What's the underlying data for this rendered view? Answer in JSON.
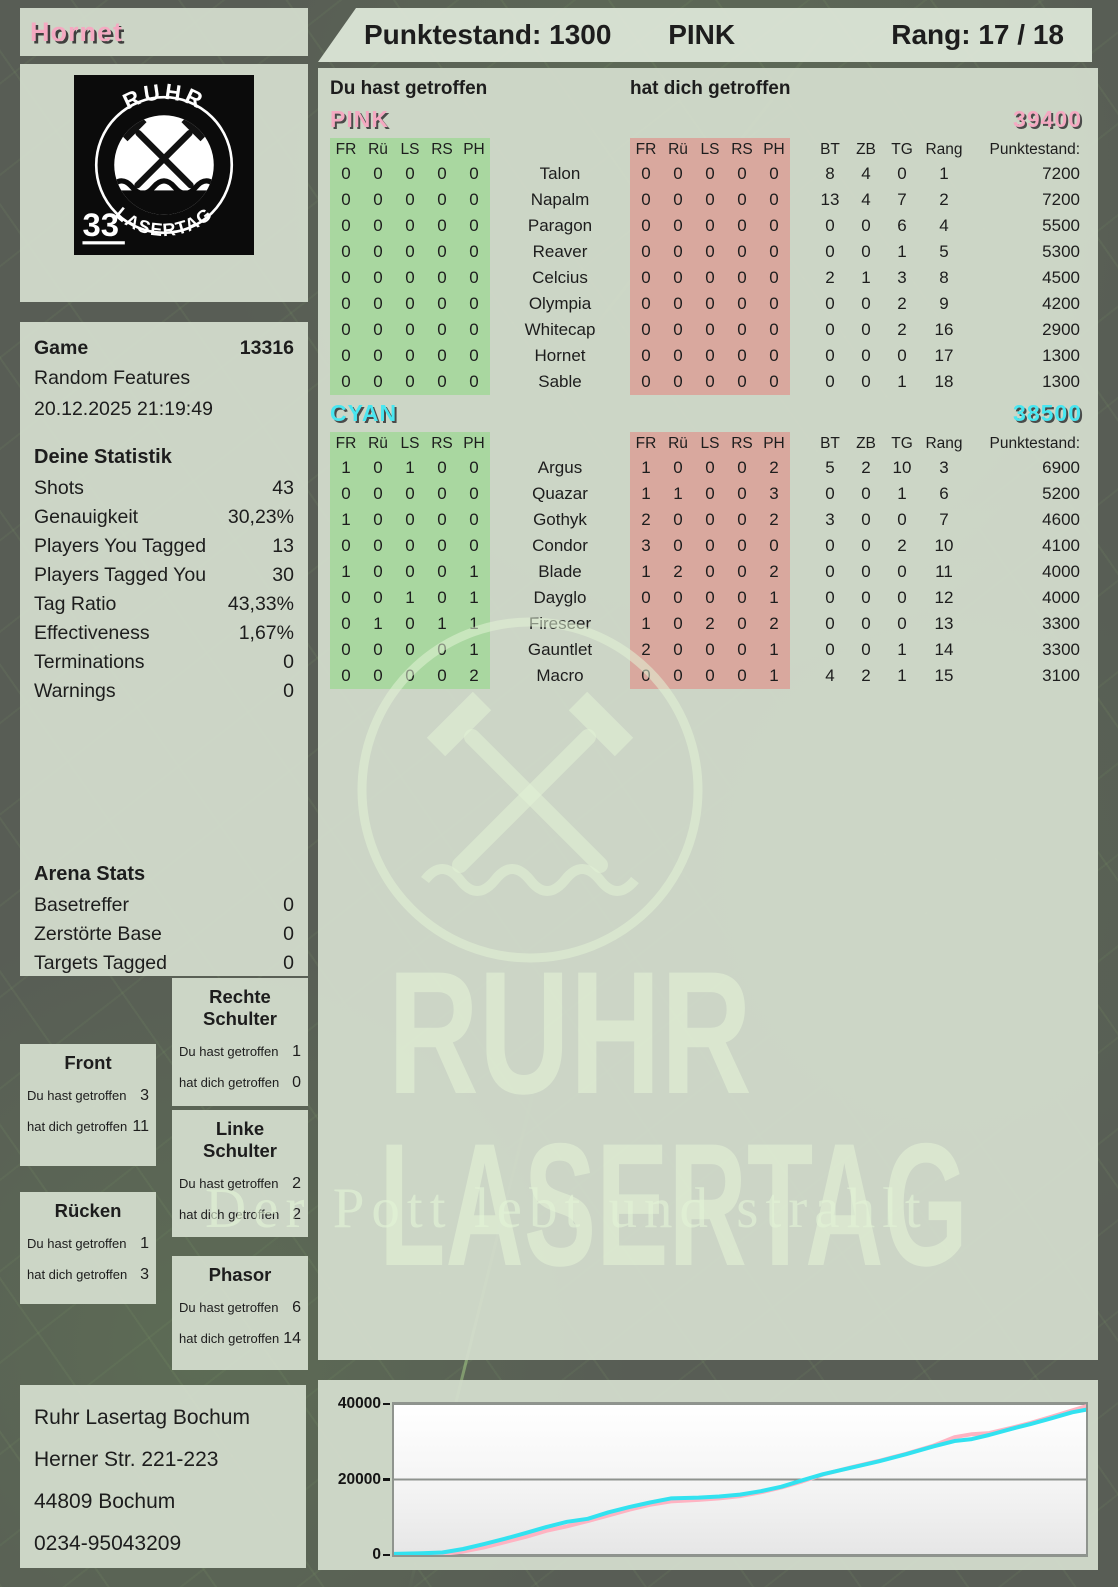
{
  "header": {
    "player": "Hornet",
    "punktestand_label": "Punktestand:",
    "punktestand": "1300",
    "team": "PINK",
    "rang_label": "Rang:",
    "rang": "17 / 18"
  },
  "logo": {
    "arc_top": "RUHR",
    "arc_bottom": "LASERTAG",
    "number": "33"
  },
  "game": {
    "label": "Game",
    "id": "13316",
    "mode": "Random Features",
    "datetime": "20.12.2025 21:19:49"
  },
  "your_stats": {
    "title": "Deine Statistik",
    "rows": [
      {
        "label": "Shots",
        "value": "43"
      },
      {
        "label": "Genauigkeit",
        "value": "30,23%"
      },
      {
        "label": "Players You Tagged",
        "value": "13"
      },
      {
        "label": "Players Tagged You",
        "value": "30"
      },
      {
        "label": "Tag Ratio",
        "value": "43,33%"
      },
      {
        "label": "Effectiveness",
        "value": "1,67%"
      },
      {
        "label": "Terminations",
        "value": "0"
      },
      {
        "label": "Warnings",
        "value": "0"
      }
    ]
  },
  "arena_stats": {
    "title": "Arena Stats",
    "rows": [
      {
        "label": "Basetreffer",
        "value": "0"
      },
      {
        "label": "Zerstörte Base",
        "value": "0"
      },
      {
        "label": "Targets Tagged",
        "value": "0"
      }
    ]
  },
  "hit_headers": {
    "you": "Du hast getroffen",
    "them": "hat dich getroffen"
  },
  "columns": {
    "hit": [
      "FR",
      "Rü",
      "LS",
      "RS",
      "PH"
    ],
    "stats": [
      "BT",
      "ZB",
      "TG",
      "Rang"
    ],
    "punkte_header": "Punktestand:"
  },
  "colors": {
    "pink": "#f4a9c1",
    "cyan": "#49e6f0",
    "hit_you_bg": "#a9d7a0",
    "hit_them_bg": "#d9a89e",
    "chart_pink": "#ffb3c2",
    "chart_cyan": "#32e2f0"
  },
  "teams": [
    {
      "name": "PINK",
      "color": "#f4a9c1",
      "total": "39400",
      "rows": [
        {
          "you": [
            0,
            0,
            0,
            0,
            0
          ],
          "player": "Talon",
          "them": [
            0,
            0,
            0,
            0,
            0
          ],
          "bt": 8,
          "zb": 4,
          "tg": 0,
          "rang": 1,
          "punkte": "7200"
        },
        {
          "you": [
            0,
            0,
            0,
            0,
            0
          ],
          "player": "Napalm",
          "them": [
            0,
            0,
            0,
            0,
            0
          ],
          "bt": 13,
          "zb": 4,
          "tg": 7,
          "rang": 2,
          "punkte": "7200"
        },
        {
          "you": [
            0,
            0,
            0,
            0,
            0
          ],
          "player": "Paragon",
          "them": [
            0,
            0,
            0,
            0,
            0
          ],
          "bt": 0,
          "zb": 0,
          "tg": 6,
          "rang": 4,
          "punkte": "5500"
        },
        {
          "you": [
            0,
            0,
            0,
            0,
            0
          ],
          "player": "Reaver",
          "them": [
            0,
            0,
            0,
            0,
            0
          ],
          "bt": 0,
          "zb": 0,
          "tg": 1,
          "rang": 5,
          "punkte": "5300"
        },
        {
          "you": [
            0,
            0,
            0,
            0,
            0
          ],
          "player": "Celcius",
          "them": [
            0,
            0,
            0,
            0,
            0
          ],
          "bt": 2,
          "zb": 1,
          "tg": 3,
          "rang": 8,
          "punkte": "4500"
        },
        {
          "you": [
            0,
            0,
            0,
            0,
            0
          ],
          "player": "Olympia",
          "them": [
            0,
            0,
            0,
            0,
            0
          ],
          "bt": 0,
          "zb": 0,
          "tg": 2,
          "rang": 9,
          "punkte": "4200"
        },
        {
          "you": [
            0,
            0,
            0,
            0,
            0
          ],
          "player": "Whitecap",
          "them": [
            0,
            0,
            0,
            0,
            0
          ],
          "bt": 0,
          "zb": 0,
          "tg": 2,
          "rang": 16,
          "punkte": "2900"
        },
        {
          "you": [
            0,
            0,
            0,
            0,
            0
          ],
          "player": "Hornet",
          "them": [
            0,
            0,
            0,
            0,
            0
          ],
          "bt": 0,
          "zb": 0,
          "tg": 0,
          "rang": 17,
          "punkte": "1300"
        },
        {
          "you": [
            0,
            0,
            0,
            0,
            0
          ],
          "player": "Sable",
          "them": [
            0,
            0,
            0,
            0,
            0
          ],
          "bt": 0,
          "zb": 0,
          "tg": 1,
          "rang": 18,
          "punkte": "1300"
        }
      ]
    },
    {
      "name": "CYAN",
      "color": "#49e6f0",
      "total": "38500",
      "rows": [
        {
          "you": [
            1,
            0,
            1,
            0,
            0
          ],
          "player": "Argus",
          "them": [
            1,
            0,
            0,
            0,
            2
          ],
          "bt": 5,
          "zb": 2,
          "tg": 10,
          "rang": 3,
          "punkte": "6900"
        },
        {
          "you": [
            0,
            0,
            0,
            0,
            0
          ],
          "player": "Quazar",
          "them": [
            1,
            1,
            0,
            0,
            3
          ],
          "bt": 0,
          "zb": 0,
          "tg": 1,
          "rang": 6,
          "punkte": "5200"
        },
        {
          "you": [
            1,
            0,
            0,
            0,
            0
          ],
          "player": "Gothyk",
          "them": [
            2,
            0,
            0,
            0,
            2
          ],
          "bt": 3,
          "zb": 0,
          "tg": 0,
          "rang": 7,
          "punkte": "4600"
        },
        {
          "you": [
            0,
            0,
            0,
            0,
            0
          ],
          "player": "Condor",
          "them": [
            3,
            0,
            0,
            0,
            0
          ],
          "bt": 0,
          "zb": 0,
          "tg": 2,
          "rang": 10,
          "punkte": "4100"
        },
        {
          "you": [
            1,
            0,
            0,
            0,
            1
          ],
          "player": "Blade",
          "them": [
            1,
            2,
            0,
            0,
            2
          ],
          "bt": 0,
          "zb": 0,
          "tg": 0,
          "rang": 11,
          "punkte": "4000"
        },
        {
          "you": [
            0,
            0,
            1,
            0,
            1
          ],
          "player": "Dayglo",
          "them": [
            0,
            0,
            0,
            0,
            1
          ],
          "bt": 0,
          "zb": 0,
          "tg": 0,
          "rang": 12,
          "punkte": "4000"
        },
        {
          "you": [
            0,
            1,
            0,
            1,
            1
          ],
          "player": "Fireseer",
          "them": [
            1,
            0,
            2,
            0,
            2
          ],
          "bt": 0,
          "zb": 0,
          "tg": 0,
          "rang": 13,
          "punkte": "3300"
        },
        {
          "you": [
            0,
            0,
            0,
            0,
            1
          ],
          "player": "Gauntlet",
          "them": [
            2,
            0,
            0,
            0,
            1
          ],
          "bt": 0,
          "zb": 0,
          "tg": 1,
          "rang": 14,
          "punkte": "3300"
        },
        {
          "you": [
            0,
            0,
            0,
            0,
            2
          ],
          "player": "Macro",
          "them": [
            0,
            0,
            0,
            0,
            1
          ],
          "bt": 4,
          "zb": 2,
          "tg": 1,
          "rang": 15,
          "punkte": "3100"
        }
      ]
    }
  ],
  "bodypart_labels": {
    "you": "Du hast getroffen",
    "them": "hat dich getroffen"
  },
  "bodyparts": [
    {
      "title": "Front",
      "you": "3",
      "them": "11"
    },
    {
      "title": "Rücken",
      "you": "1",
      "them": "3"
    },
    {
      "title": "Rechte Schulter",
      "you": "1",
      "them": "0"
    },
    {
      "title": "Linke Schulter",
      "you": "2",
      "them": "2"
    },
    {
      "title": "Phasor",
      "you": "6",
      "them": "14"
    }
  ],
  "address": {
    "lines": [
      "Ruhr Lasertag Bochum",
      "Herner Str. 221-223",
      "44809 Bochum",
      "0234-95043209"
    ]
  },
  "watermark": {
    "line1": "RUHR",
    "line2": "LASERTAG",
    "tagline": "Der Pott lebt und strahlt"
  },
  "chart_data": {
    "type": "line",
    "title": "",
    "xlabel": "",
    "ylabel": "",
    "ylim": [
      0,
      40000
    ],
    "yticks": [
      "0",
      "20000",
      "40000"
    ],
    "grid": true,
    "legend_position": "none",
    "series": [
      {
        "name": "PINK",
        "color": "#ffb3c2",
        "points": [
          [
            0,
            100
          ],
          [
            0.04,
            150
          ],
          [
            0.07,
            300
          ],
          [
            0.1,
            900
          ],
          [
            0.13,
            2000
          ],
          [
            0.16,
            3400
          ],
          [
            0.19,
            4800
          ],
          [
            0.22,
            6400
          ],
          [
            0.25,
            7600
          ],
          [
            0.28,
            9000
          ],
          [
            0.31,
            10500
          ],
          [
            0.34,
            12000
          ],
          [
            0.37,
            13300
          ],
          [
            0.4,
            14200
          ],
          [
            0.44,
            14600
          ],
          [
            0.47,
            15000
          ],
          [
            0.5,
            15600
          ],
          [
            0.53,
            16600
          ],
          [
            0.56,
            17900
          ],
          [
            0.59,
            19500
          ],
          [
            0.62,
            21300
          ],
          [
            0.66,
            23200
          ],
          [
            0.7,
            24900
          ],
          [
            0.74,
            26800
          ],
          [
            0.78,
            29000
          ],
          [
            0.81,
            31200
          ],
          [
            0.835,
            32000
          ],
          [
            0.86,
            32300
          ],
          [
            0.89,
            33600
          ],
          [
            0.92,
            35000
          ],
          [
            0.95,
            36600
          ],
          [
            0.98,
            38300
          ],
          [
            1,
            39400
          ]
        ]
      },
      {
        "name": "CYAN",
        "color": "#32e2f0",
        "points": [
          [
            0,
            300
          ],
          [
            0.04,
            450
          ],
          [
            0.07,
            650
          ],
          [
            0.1,
            1600
          ],
          [
            0.13,
            2900
          ],
          [
            0.16,
            4300
          ],
          [
            0.19,
            5800
          ],
          [
            0.22,
            7400
          ],
          [
            0.25,
            8800
          ],
          [
            0.28,
            9600
          ],
          [
            0.31,
            11300
          ],
          [
            0.34,
            12700
          ],
          [
            0.37,
            13900
          ],
          [
            0.4,
            15000
          ],
          [
            0.44,
            15200
          ],
          [
            0.47,
            15500
          ],
          [
            0.5,
            16000
          ],
          [
            0.53,
            16900
          ],
          [
            0.56,
            18100
          ],
          [
            0.59,
            19800
          ],
          [
            0.62,
            21400
          ],
          [
            0.66,
            23100
          ],
          [
            0.7,
            24800
          ],
          [
            0.74,
            26700
          ],
          [
            0.78,
            28800
          ],
          [
            0.81,
            30200
          ],
          [
            0.835,
            30700
          ],
          [
            0.86,
            31800
          ],
          [
            0.89,
            33300
          ],
          [
            0.92,
            34700
          ],
          [
            0.95,
            36200
          ],
          [
            0.98,
            37800
          ],
          [
            1,
            38500
          ]
        ]
      }
    ]
  }
}
